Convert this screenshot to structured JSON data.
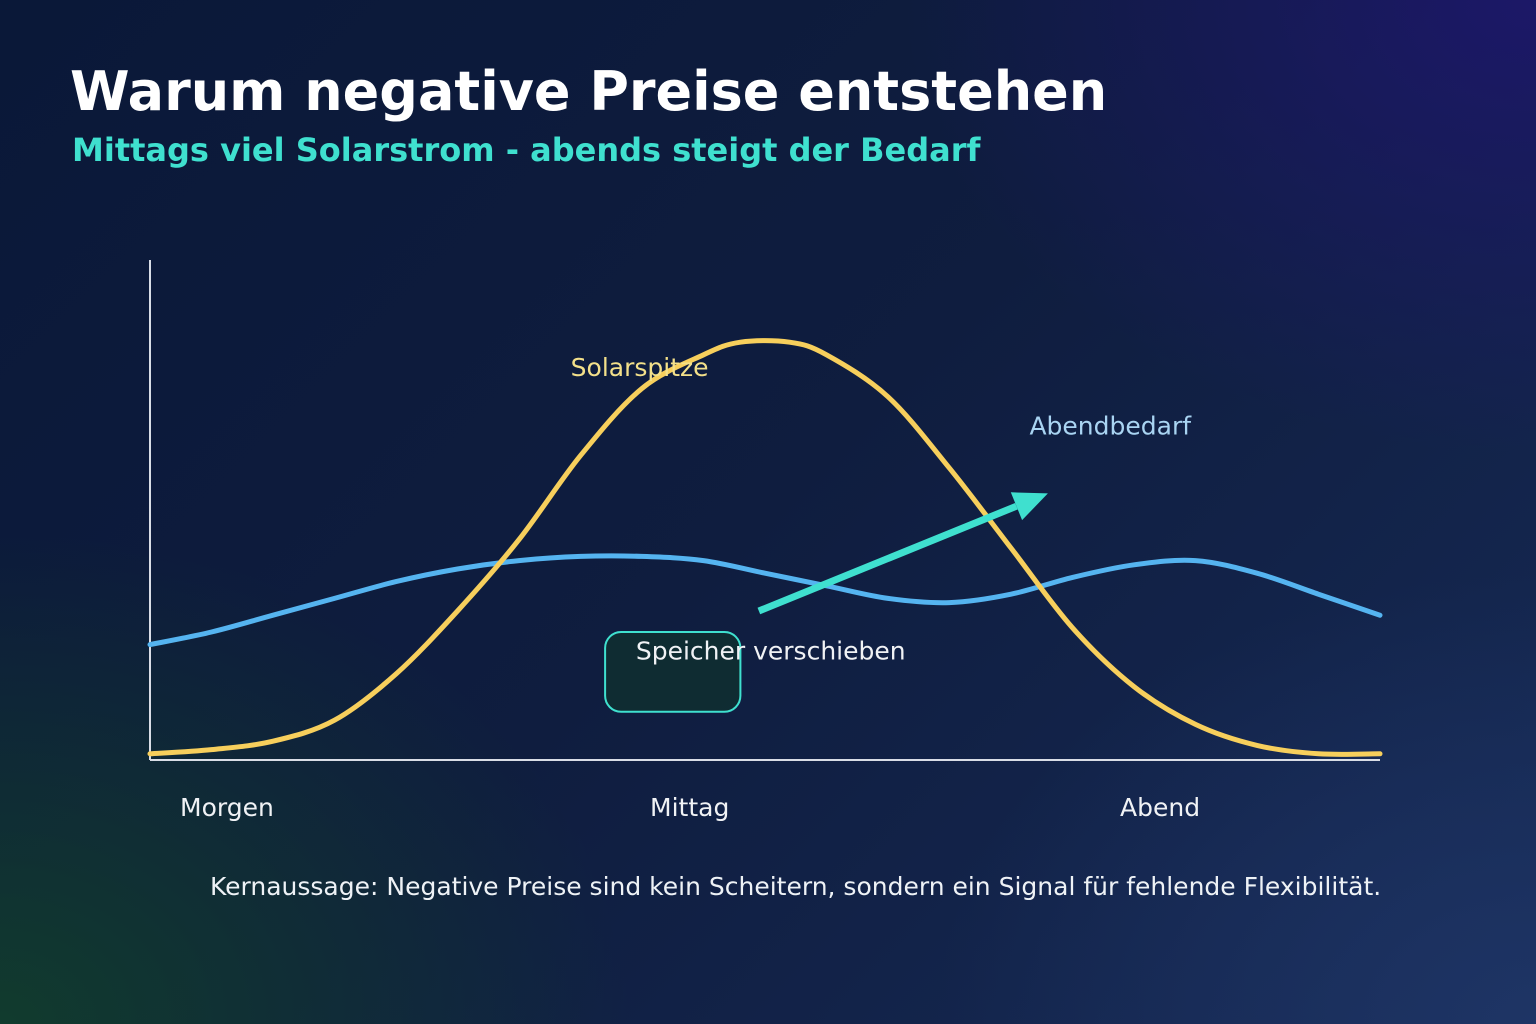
{
  "header": {
    "title": "Warum negative Preise entstehen",
    "subtitle": "Mittags viel Solarstrom - abends steigt der Bedarf"
  },
  "footer": {
    "text": "Kernaussage: Negative Preise sind kein Scheitern, sondern ein Signal für fehlende Flexibilität."
  },
  "colors": {
    "solar": "#f7cf5c",
    "demand": "#55b4f0",
    "accent": "#3fe0cf",
    "axis": "#d9dde6",
    "label": "#f0f2f5",
    "solar_label": "#f3e08a",
    "demand_label": "#a9d4f2",
    "box_fill": "#0f2f30"
  },
  "chart_data": {
    "type": "line",
    "title": "",
    "xlabel": "",
    "ylabel": "",
    "categories": [
      "Morgen",
      "Mittag",
      "Abend"
    ],
    "xlim": [
      0,
      1
    ],
    "ylim": [
      0,
      1
    ],
    "grid": false,
    "series": [
      {
        "key": "solar",
        "x": [
          0,
          0.05,
          0.1,
          0.15,
          0.2,
          0.25,
          0.3,
          0.35,
          0.4,
          0.45,
          0.48,
          0.52,
          0.55,
          0.6,
          0.65,
          0.7,
          0.75,
          0.8,
          0.85,
          0.9,
          0.95,
          1
        ],
        "values": [
          0.01,
          0.02,
          0.04,
          0.09,
          0.2,
          0.35,
          0.52,
          0.72,
          0.88,
          0.96,
          0.99,
          0.99,
          0.96,
          0.86,
          0.69,
          0.5,
          0.31,
          0.17,
          0.08,
          0.03,
          0.01,
          0.01
        ]
      },
      {
        "key": "demand",
        "x": [
          0,
          0.05,
          0.1,
          0.15,
          0.2,
          0.25,
          0.3,
          0.35,
          0.4,
          0.45,
          0.5,
          0.55,
          0.6,
          0.65,
          0.7,
          0.75,
          0.8,
          0.85,
          0.9,
          0.95,
          1
        ],
        "values": [
          0.27,
          0.3,
          0.34,
          0.38,
          0.42,
          0.45,
          0.47,
          0.48,
          0.48,
          0.47,
          0.44,
          0.41,
          0.38,
          0.37,
          0.39,
          0.43,
          0.46,
          0.47,
          0.44,
          0.39,
          0.34
        ]
      }
    ],
    "annotations": [
      {
        "key": "solar_peak",
        "text": "Solarspitze",
        "x": 0.342,
        "y": 0.91
      },
      {
        "key": "evening_demand",
        "text": "Abendbedarf",
        "x": 0.715,
        "y": 0.77
      },
      {
        "key": "storage",
        "text": "Speicher verschieben",
        "x": 0.395,
        "y": 0.235,
        "box": [
          0.37,
          0.48,
          0.11,
          0.3
        ]
      }
    ],
    "arrow": {
      "from": [
        0.495,
        0.35
      ],
      "to": [
        0.73,
        0.63
      ]
    }
  }
}
